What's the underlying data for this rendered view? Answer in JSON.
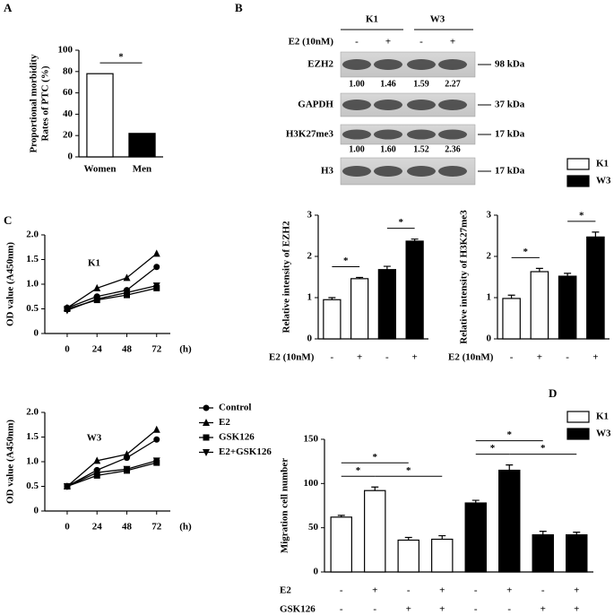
{
  "panel_labels": [
    "A",
    "B",
    "C",
    "D"
  ],
  "blot": {
    "groups": [
      "K1",
      "W3"
    ],
    "treatment": {
      "label": "E2 (10nM)",
      "values": [
        "-",
        "+",
        "-",
        "+"
      ]
    },
    "rows": [
      {
        "label": "EZH2",
        "size": "98 kDa",
        "quantification": [
          "1.00",
          "1.46",
          "1.59",
          "2.27"
        ]
      },
      {
        "label": "GAPDH",
        "size": "37 kDa"
      },
      {
        "label": "H3K27me3",
        "size": "17 kDa",
        "quantification": [
          "1.00",
          "1.60",
          "1.52",
          "2.36"
        ]
      },
      {
        "label": "H3",
        "size": "17 kDa"
      }
    ]
  },
  "chart_data": [
    {
      "type": "bar",
      "ylabel": [
        "Proportional morbidity",
        "Rates of PTC (%)"
      ],
      "categories": [
        "Women",
        "Men"
      ],
      "values": [
        78,
        22
      ],
      "colors": [
        "#ffffff",
        "#000000"
      ],
      "ylim": [
        0,
        100
      ],
      "yticks": [
        0,
        20,
        40,
        60,
        80,
        100
      ],
      "significance": [
        {
          "label": "*",
          "pair": [
            0,
            1
          ]
        }
      ]
    },
    {
      "type": "bar",
      "ylabel": "Relative intensity of EZH2",
      "values": [
        0.95,
        1.46,
        1.68,
        2.37
      ],
      "errors": [
        0.05,
        0.03,
        0.08,
        0.05
      ],
      "colors": [
        "#ffffff",
        "#ffffff",
        "#000000",
        "#000000"
      ],
      "rows": [
        {
          "label": "E2 (10nM)",
          "values": [
            "-",
            "+",
            "-",
            "+"
          ]
        }
      ],
      "ylim": [
        0,
        3
      ],
      "yticks": [
        0,
        1,
        2,
        3
      ],
      "legend": [
        {
          "name": "K1",
          "color": "#ffffff"
        },
        {
          "name": "W3",
          "color": "#000000"
        }
      ],
      "significance": [
        {
          "label": "*",
          "pair": [
            0,
            1
          ]
        },
        {
          "label": "*",
          "pair": [
            2,
            3
          ]
        }
      ]
    },
    {
      "type": "bar",
      "ylabel": "Relative intensity of H3K27me3",
      "values": [
        0.98,
        1.63,
        1.52,
        2.47
      ],
      "errors": [
        0.08,
        0.08,
        0.07,
        0.12
      ],
      "colors": [
        "#ffffff",
        "#ffffff",
        "#000000",
        "#000000"
      ],
      "rows": [
        {
          "label": "E2 (10nM)",
          "values": [
            "-",
            "+",
            "-",
            "+"
          ]
        }
      ],
      "ylim": [
        0,
        3
      ],
      "yticks": [
        0,
        1,
        2,
        3
      ],
      "significance": [
        {
          "label": "*",
          "pair": [
            0,
            1
          ]
        },
        {
          "label": "*",
          "pair": [
            2,
            3
          ]
        }
      ]
    },
    {
      "type": "line",
      "title": "K1",
      "x": [
        0,
        24,
        48,
        72
      ],
      "xlim": [
        -18,
        83
      ],
      "xticks": [
        0,
        24,
        48,
        72
      ],
      "xlabel": "(h)",
      "ylabel": "OD value (A450nm)",
      "ylim": [
        0,
        2
      ],
      "yticks": [
        0,
        0.5,
        {
          "value": 1,
          "label": "1.0"
        },
        1.5,
        {
          "value": 2,
          "label": "2.0"
        }
      ],
      "series": [
        {
          "color": "#000000",
          "marker": "circle",
          "values": [
            0.52,
            0.75,
            0.88,
            1.35
          ]
        },
        {
          "color": "#000000",
          "marker": "triangle-up",
          "values": [
            0.52,
            0.92,
            1.13,
            1.62
          ]
        },
        {
          "color": "#000000",
          "marker": "square",
          "values": [
            0.5,
            0.68,
            0.78,
            0.92
          ]
        },
        {
          "color": "#000000",
          "marker": "triangle-down",
          "values": [
            0.47,
            0.7,
            0.83,
            0.97
          ]
        }
      ]
    },
    {
      "type": "line",
      "title": "W3",
      "x": [
        0,
        24,
        48,
        72
      ],
      "xlim": [
        -18,
        83
      ],
      "xticks": [
        0,
        24,
        48,
        72
      ],
      "xlabel": "(h)",
      "ylabel": "OD value (A450nm)",
      "ylim": [
        0,
        2
      ],
      "yticks": [
        0,
        0.5,
        {
          "value": 1,
          "label": "1.0"
        },
        1.5,
        {
          "value": 2,
          "label": "2.0"
        }
      ],
      "legend": true,
      "series": [
        {
          "name": "Control",
          "color": "#000000",
          "marker": "circle",
          "values": [
            0.5,
            0.83,
            1.08,
            1.45
          ]
        },
        {
          "name": "E2",
          "color": "#000000",
          "marker": "triangle-up",
          "values": [
            0.5,
            1.02,
            1.15,
            1.65
          ]
        },
        {
          "name": "GSK126",
          "color": "#000000",
          "marker": "square",
          "values": [
            0.5,
            0.72,
            0.82,
            0.98
          ]
        },
        {
          "name": "E2+GSK126",
          "color": "#000000",
          "marker": "triangle-down",
          "values": [
            0.5,
            0.78,
            0.85,
            1.02
          ]
        }
      ]
    },
    {
      "type": "bar",
      "ylabel": "Migration cell number",
      "values": [
        62,
        92,
        36,
        37,
        78,
        115,
        42,
        42
      ],
      "errors": [
        2,
        4,
        3,
        4,
        3,
        6,
        4,
        3
      ],
      "colors": [
        "#ffffff",
        "#ffffff",
        "#ffffff",
        "#ffffff",
        "#000000",
        "#000000",
        "#000000",
        "#000000"
      ],
      "rows": [
        {
          "label": "E2",
          "values": [
            "-",
            "+",
            "-",
            "+",
            "-",
            "+",
            "-",
            "+"
          ]
        },
        {
          "label": "GSK126",
          "values": [
            "-",
            "-",
            "+",
            "+",
            "-",
            "-",
            "+",
            "+"
          ]
        }
      ],
      "ylim": [
        0,
        150
      ],
      "yticks": [
        0,
        50,
        100,
        150
      ],
      "legend": [
        {
          "name": "K1",
          "color": "#ffffff"
        },
        {
          "name": "W3",
          "color": "#000000"
        }
      ],
      "significance": [
        {
          "label": "*",
          "pair": [
            0,
            1
          ]
        },
        {
          "label": "*",
          "pair": [
            0,
            2
          ]
        },
        {
          "label": "*",
          "pair": [
            1,
            3
          ]
        },
        {
          "label": "*",
          "pair": [
            4,
            5
          ]
        },
        {
          "label": "*",
          "pair": [
            4,
            6
          ]
        },
        {
          "label": "*",
          "pair": [
            5,
            7
          ]
        }
      ]
    }
  ]
}
